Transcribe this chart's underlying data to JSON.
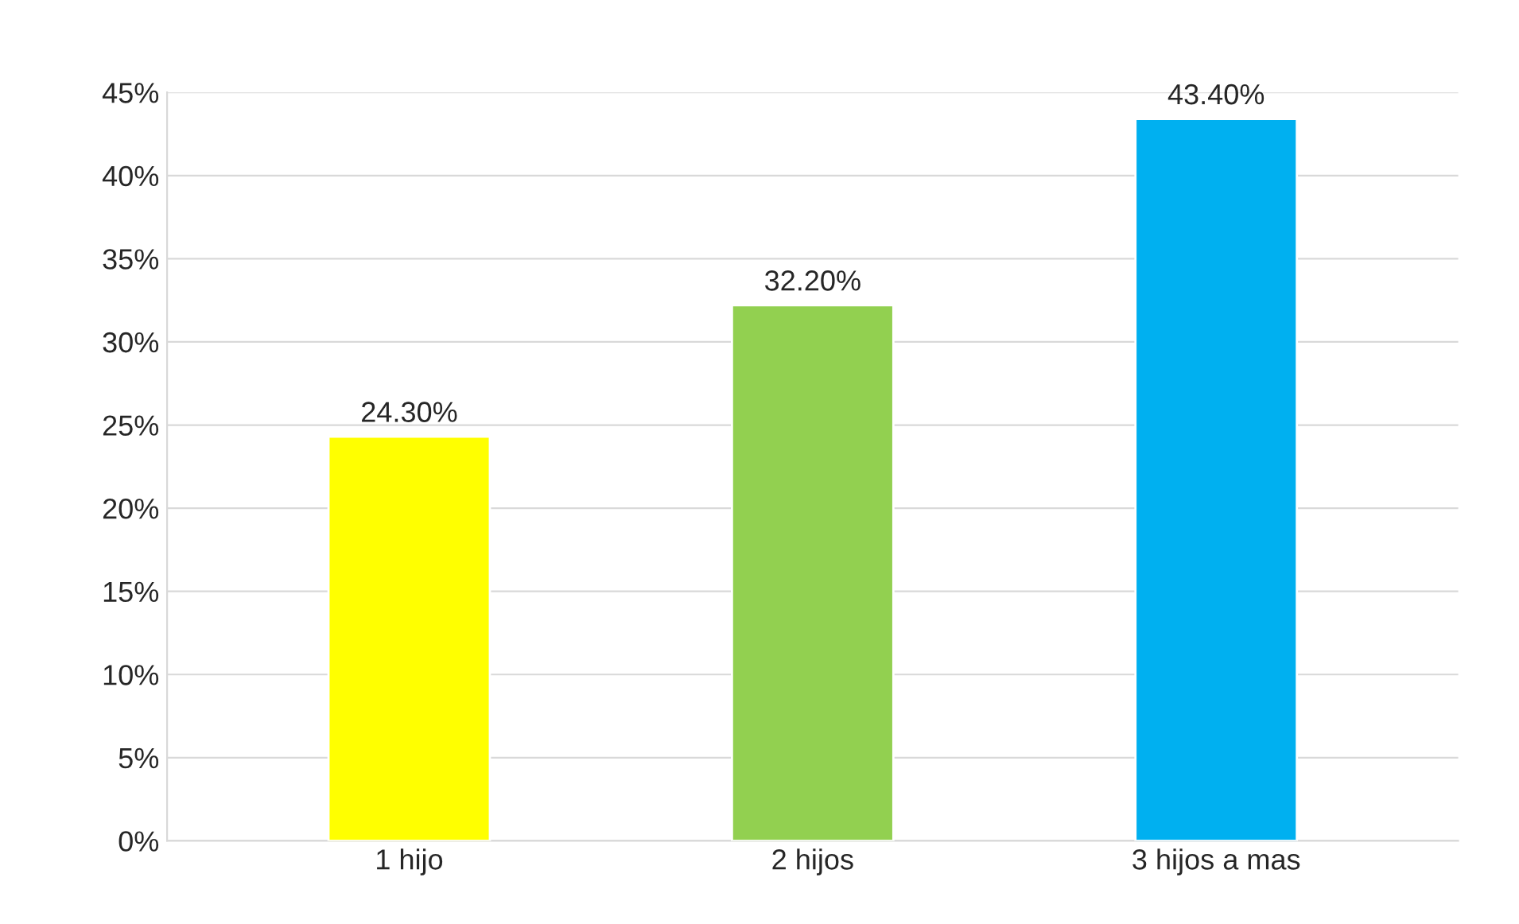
{
  "chart_data": {
    "type": "bar",
    "categories": [
      "1 hijo",
      "2 hijos",
      "3 hijos a mas"
    ],
    "values": [
      24.3,
      32.2,
      43.4
    ],
    "colors": [
      "#ffff00",
      "#92d050",
      "#00b0f0"
    ],
    "value_labels": [
      "24.30%",
      "32.20%",
      "43.40%"
    ],
    "ylim": [
      0,
      45
    ],
    "yticks": [
      {
        "value": 0,
        "label": "0%"
      },
      {
        "value": 5,
        "label": "5%"
      },
      {
        "value": 10,
        "label": "10%"
      },
      {
        "value": 15,
        "label": "15%"
      },
      {
        "value": 20,
        "label": "20%"
      },
      {
        "value": 25,
        "label": "25%"
      },
      {
        "value": 30,
        "label": "30%"
      },
      {
        "value": 35,
        "label": "35%"
      },
      {
        "value": 40,
        "label": "40%"
      },
      {
        "value": 45,
        "label": "45%"
      }
    ],
    "grid": "y",
    "legend": false
  }
}
